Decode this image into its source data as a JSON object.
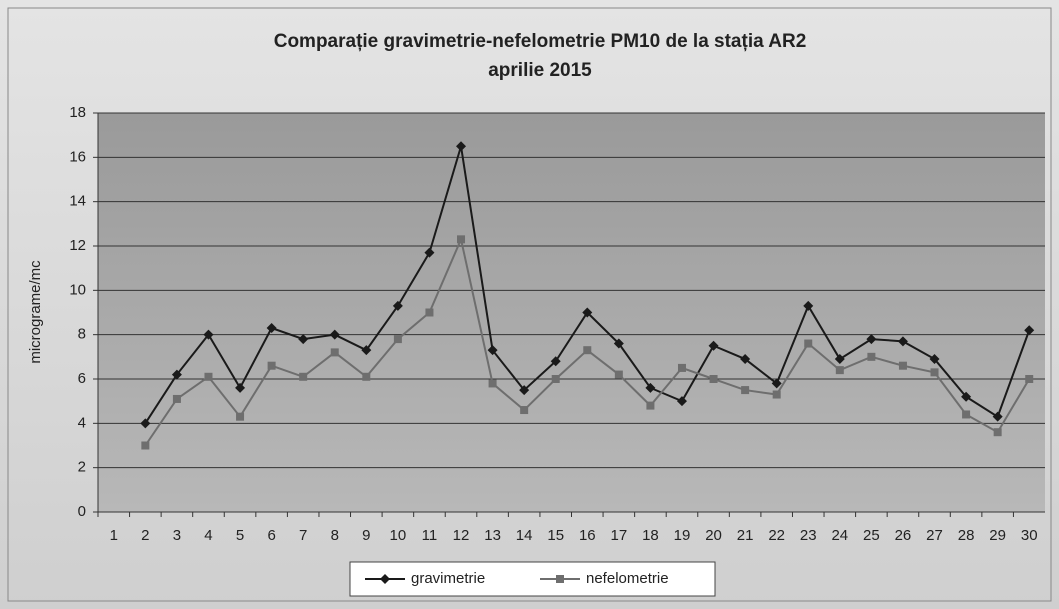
{
  "chart_data": {
    "type": "line",
    "title": "Comparație gravimetrie-nefelometrie PM10 de la stația AR2",
    "subtitle": "aprilie 2015",
    "y_label": "micrograme/mc",
    "categories": [
      "1",
      "2",
      "3",
      "4",
      "5",
      "6",
      "7",
      "8",
      "9",
      "10",
      "11",
      "12",
      "13",
      "14",
      "15",
      "16",
      "17",
      "18",
      "19",
      "20",
      "21",
      "22",
      "23",
      "24",
      "25",
      "26",
      "27",
      "28",
      "29",
      "30"
    ],
    "series": [
      {
        "name": "gravimetrie",
        "color": "#1a1a1a",
        "marker": "diamond",
        "values": [
          null,
          4.0,
          6.2,
          8.0,
          5.6,
          8.3,
          7.8,
          8.0,
          7.3,
          9.3,
          11.7,
          16.5,
          7.3,
          5.5,
          6.8,
          9.0,
          7.6,
          5.6,
          5.0,
          7.5,
          6.9,
          5.8,
          9.3,
          6.9,
          7.8,
          7.7,
          6.9,
          5.2,
          4.3,
          8.2
        ]
      },
      {
        "name": "nefelometrie",
        "color": "#6e6e6e",
        "marker": "square",
        "values": [
          null,
          3.0,
          5.1,
          6.1,
          4.3,
          6.6,
          6.1,
          7.2,
          6.1,
          7.8,
          9.0,
          12.3,
          5.8,
          4.6,
          6.0,
          7.3,
          6.2,
          4.8,
          6.5,
          6.0,
          5.5,
          5.3,
          7.6,
          6.4,
          7.0,
          6.6,
          6.3,
          4.4,
          3.6,
          6.0
        ]
      }
    ],
    "ylim": [
      0,
      18
    ],
    "yticks": [
      0,
      2,
      4,
      6,
      8,
      10,
      12,
      14,
      16,
      18
    ],
    "grid": true,
    "legend": "bottom"
  }
}
